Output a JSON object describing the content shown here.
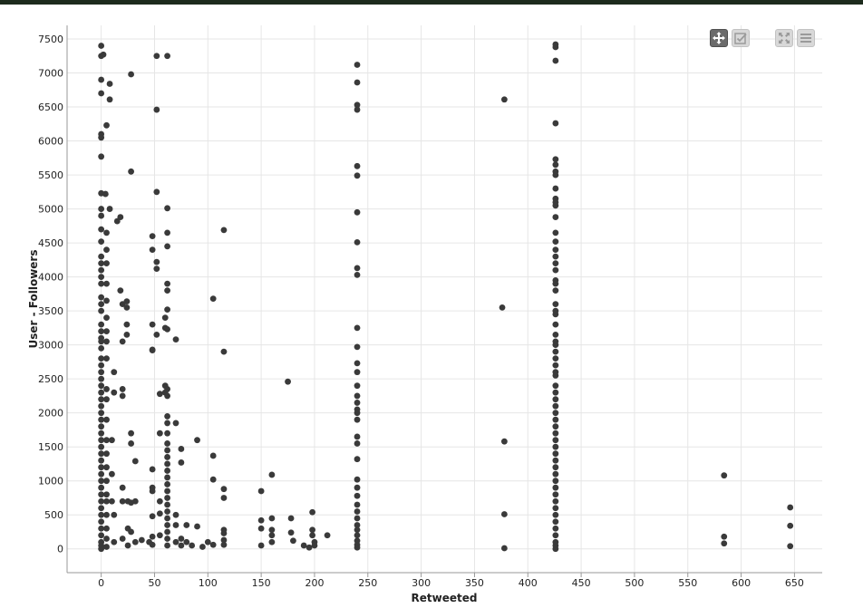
{
  "toolbar": {
    "pan_icon": "move-arrows-icon",
    "select_icon": "checkbox-select-icon",
    "reset_icon": "expand-icon",
    "menu_icon": "hamburger-menu-icon"
  },
  "colors": {
    "points": "#3a3a3a",
    "grid": "#e6e6e6",
    "axis": "#999999",
    "topbar": "#1d2b1d"
  },
  "chart_data": {
    "type": "scatter",
    "xlabel": "Retweeted",
    "ylabel": "User - Followers",
    "xlim": [
      -32,
      676
    ],
    "ylim": [
      -350,
      7700
    ],
    "xticks": [
      0,
      50,
      100,
      150,
      200,
      250,
      300,
      350,
      400,
      450,
      500,
      550,
      600,
      650
    ],
    "yticks": [
      0,
      500,
      1000,
      1500,
      2000,
      2500,
      3000,
      3500,
      4000,
      4500,
      5000,
      5500,
      6000,
      6500,
      7000,
      7500
    ],
    "grid": true,
    "points": [
      [
        0,
        7400
      ],
      [
        0,
        7250
      ],
      [
        2,
        7270
      ],
      [
        0,
        6900
      ],
      [
        0,
        6700
      ],
      [
        0,
        6100
      ],
      [
        0,
        6050
      ],
      [
        0,
        5770
      ],
      [
        0,
        5230
      ],
      [
        0,
        5000
      ],
      [
        0,
        4900
      ],
      [
        0,
        4700
      ],
      [
        0,
        4520
      ],
      [
        0,
        4300
      ],
      [
        0,
        4200
      ],
      [
        0,
        4100
      ],
      [
        0,
        4000
      ],
      [
        0,
        3900
      ],
      [
        0,
        3700
      ],
      [
        0,
        3600
      ],
      [
        0,
        3500
      ],
      [
        0,
        3300
      ],
      [
        0,
        3200
      ],
      [
        0,
        3100
      ],
      [
        0,
        3050
      ],
      [
        0,
        2950
      ],
      [
        0,
        2800
      ],
      [
        0,
        2700
      ],
      [
        0,
        2600
      ],
      [
        0,
        2500
      ],
      [
        0,
        2400
      ],
      [
        0,
        2300
      ],
      [
        0,
        2200
      ],
      [
        0,
        2100
      ],
      [
        0,
        2000
      ],
      [
        0,
        1900
      ],
      [
        0,
        1800
      ],
      [
        0,
        1700
      ],
      [
        0,
        1600
      ],
      [
        0,
        1500
      ],
      [
        0,
        1400
      ],
      [
        0,
        1300
      ],
      [
        0,
        1200
      ],
      [
        0,
        1100
      ],
      [
        0,
        1000
      ],
      [
        0,
        900
      ],
      [
        0,
        800
      ],
      [
        0,
        700
      ],
      [
        0,
        600
      ],
      [
        0,
        500
      ],
      [
        0,
        400
      ],
      [
        0,
        300
      ],
      [
        0,
        200
      ],
      [
        0,
        100
      ],
      [
        0,
        50
      ],
      [
        0,
        0
      ],
      [
        4,
        5220
      ],
      [
        5,
        6230
      ],
      [
        8,
        6840
      ],
      [
        8,
        6610
      ],
      [
        8,
        5000
      ],
      [
        5,
        4650
      ],
      [
        5,
        4400
      ],
      [
        5,
        4200
      ],
      [
        5,
        3900
      ],
      [
        5,
        3650
      ],
      [
        5,
        3400
      ],
      [
        5,
        3200
      ],
      [
        5,
        3050
      ],
      [
        5,
        2800
      ],
      [
        5,
        2350
      ],
      [
        5,
        2200
      ],
      [
        5,
        1900
      ],
      [
        5,
        1600
      ],
      [
        5,
        1400
      ],
      [
        5,
        1200
      ],
      [
        5,
        1000
      ],
      [
        5,
        800
      ],
      [
        5,
        700
      ],
      [
        5,
        500
      ],
      [
        5,
        300
      ],
      [
        5,
        150
      ],
      [
        5,
        30
      ],
      [
        10,
        1600
      ],
      [
        10,
        1100
      ],
      [
        10,
        700
      ],
      [
        12,
        2600
      ],
      [
        12,
        2300
      ],
      [
        12,
        500
      ],
      [
        12,
        100
      ],
      [
        15,
        4820
      ],
      [
        18,
        4880
      ],
      [
        18,
        3800
      ],
      [
        20,
        3600
      ],
      [
        20,
        3050
      ],
      [
        20,
        2350
      ],
      [
        20,
        2250
      ],
      [
        20,
        900
      ],
      [
        20,
        700
      ],
      [
        20,
        150
      ],
      [
        24,
        3640
      ],
      [
        24,
        3550
      ],
      [
        24,
        3300
      ],
      [
        24,
        3150
      ],
      [
        25,
        700
      ],
      [
        25,
        300
      ],
      [
        25,
        50
      ],
      [
        28,
        6980
      ],
      [
        28,
        5550
      ],
      [
        28,
        1700
      ],
      [
        28,
        1550
      ],
      [
        28,
        680
      ],
      [
        28,
        250
      ],
      [
        32,
        1290
      ],
      [
        32,
        700
      ],
      [
        32,
        100
      ],
      [
        38,
        130
      ],
      [
        45,
        100
      ],
      [
        48,
        4600
      ],
      [
        48,
        4400
      ],
      [
        48,
        3300
      ],
      [
        48,
        2930
      ],
      [
        48,
        2920
      ],
      [
        48,
        1170
      ],
      [
        48,
        900
      ],
      [
        48,
        850
      ],
      [
        48,
        480
      ],
      [
        48,
        180
      ],
      [
        48,
        60
      ],
      [
        52,
        7250
      ],
      [
        52,
        6460
      ],
      [
        52,
        5250
      ],
      [
        52,
        4220
      ],
      [
        52,
        4120
      ],
      [
        52,
        3150
      ],
      [
        55,
        2280
      ],
      [
        55,
        1700
      ],
      [
        55,
        700
      ],
      [
        55,
        520
      ],
      [
        55,
        200
      ],
      [
        60,
        3400
      ],
      [
        60,
        3250
      ],
      [
        60,
        2400
      ],
      [
        60,
        2300
      ],
      [
        62,
        7250
      ],
      [
        62,
        5010
      ],
      [
        62,
        4650
      ],
      [
        62,
        4450
      ],
      [
        62,
        3900
      ],
      [
        62,
        3800
      ],
      [
        62,
        3520
      ],
      [
        62,
        3230
      ],
      [
        62,
        2350
      ],
      [
        62,
        2250
      ],
      [
        62,
        1950
      ],
      [
        62,
        1850
      ],
      [
        62,
        1700
      ],
      [
        62,
        1550
      ],
      [
        62,
        1450
      ],
      [
        62,
        1350
      ],
      [
        62,
        1250
      ],
      [
        62,
        1150
      ],
      [
        62,
        1050
      ],
      [
        62,
        950
      ],
      [
        62,
        850
      ],
      [
        62,
        750
      ],
      [
        62,
        650
      ],
      [
        62,
        550
      ],
      [
        62,
        450
      ],
      [
        62,
        350
      ],
      [
        62,
        250
      ],
      [
        62,
        150
      ],
      [
        62,
        50
      ],
      [
        70,
        3080
      ],
      [
        70,
        1850
      ],
      [
        70,
        500
      ],
      [
        70,
        350
      ],
      [
        70,
        100
      ],
      [
        75,
        1470
      ],
      [
        75,
        1270
      ],
      [
        75,
        150
      ],
      [
        75,
        50
      ],
      [
        80,
        350
      ],
      [
        80,
        100
      ],
      [
        85,
        50
      ],
      [
        90,
        1600
      ],
      [
        90,
        330
      ],
      [
        95,
        30
      ],
      [
        100,
        100
      ],
      [
        105,
        3680
      ],
      [
        105,
        1370
      ],
      [
        105,
        1020
      ],
      [
        105,
        60
      ],
      [
        115,
        4690
      ],
      [
        115,
        2900
      ],
      [
        115,
        880
      ],
      [
        115,
        750
      ],
      [
        115,
        280
      ],
      [
        115,
        230
      ],
      [
        115,
        130
      ],
      [
        115,
        60
      ],
      [
        150,
        850
      ],
      [
        150,
        420
      ],
      [
        150,
        300
      ],
      [
        150,
        50
      ],
      [
        160,
        1090
      ],
      [
        160,
        450
      ],
      [
        160,
        280
      ],
      [
        160,
        200
      ],
      [
        160,
        100
      ],
      [
        175,
        2460
      ],
      [
        178,
        450
      ],
      [
        178,
        240
      ],
      [
        180,
        120
      ],
      [
        190,
        50
      ],
      [
        195,
        20
      ],
      [
        198,
        540
      ],
      [
        198,
        280
      ],
      [
        198,
        200
      ],
      [
        200,
        100
      ],
      [
        200,
        50
      ],
      [
        212,
        200
      ],
      [
        240,
        7120
      ],
      [
        240,
        6860
      ],
      [
        240,
        6530
      ],
      [
        240,
        6460
      ],
      [
        240,
        5630
      ],
      [
        240,
        5490
      ],
      [
        240,
        4950
      ],
      [
        240,
        4510
      ],
      [
        240,
        4130
      ],
      [
        240,
        4030
      ],
      [
        240,
        3250
      ],
      [
        240,
        2970
      ],
      [
        240,
        2730
      ],
      [
        240,
        2600
      ],
      [
        240,
        2400
      ],
      [
        240,
        2250
      ],
      [
        240,
        2150
      ],
      [
        240,
        2050
      ],
      [
        240,
        2000
      ],
      [
        240,
        1900
      ],
      [
        240,
        1650
      ],
      [
        240,
        1550
      ],
      [
        240,
        1320
      ],
      [
        240,
        1020
      ],
      [
        240,
        900
      ],
      [
        240,
        780
      ],
      [
        240,
        650
      ],
      [
        240,
        550
      ],
      [
        240,
        450
      ],
      [
        240,
        350
      ],
      [
        240,
        280
      ],
      [
        240,
        200
      ],
      [
        240,
        120
      ],
      [
        240,
        60
      ],
      [
        240,
        20
      ],
      [
        376,
        3550
      ],
      [
        378,
        6610
      ],
      [
        378,
        1580
      ],
      [
        378,
        510
      ],
      [
        378,
        10
      ],
      [
        426,
        7380
      ],
      [
        426,
        7420
      ],
      [
        426,
        7180
      ],
      [
        426,
        6260
      ],
      [
        426,
        5730
      ],
      [
        426,
        5650
      ],
      [
        426,
        5550
      ],
      [
        426,
        5500
      ],
      [
        426,
        5300
      ],
      [
        426,
        5150
      ],
      [
        426,
        5100
      ],
      [
        426,
        5050
      ],
      [
        426,
        4880
      ],
      [
        426,
        4650
      ],
      [
        426,
        4520
      ],
      [
        426,
        4400
      ],
      [
        426,
        4300
      ],
      [
        426,
        4200
      ],
      [
        426,
        4100
      ],
      [
        426,
        3950
      ],
      [
        426,
        3900
      ],
      [
        426,
        3800
      ],
      [
        426,
        3600
      ],
      [
        426,
        3500
      ],
      [
        426,
        3450
      ],
      [
        426,
        3300
      ],
      [
        426,
        3150
      ],
      [
        426,
        3050
      ],
      [
        426,
        3000
      ],
      [
        426,
        2900
      ],
      [
        426,
        2800
      ],
      [
        426,
        2700
      ],
      [
        426,
        2600
      ],
      [
        426,
        2550
      ],
      [
        426,
        2400
      ],
      [
        426,
        2300
      ],
      [
        426,
        2200
      ],
      [
        426,
        2100
      ],
      [
        426,
        2000
      ],
      [
        426,
        1900
      ],
      [
        426,
        1800
      ],
      [
        426,
        1700
      ],
      [
        426,
        1600
      ],
      [
        426,
        1500
      ],
      [
        426,
        1400
      ],
      [
        426,
        1300
      ],
      [
        426,
        1200
      ],
      [
        426,
        1100
      ],
      [
        426,
        1000
      ],
      [
        426,
        900
      ],
      [
        426,
        800
      ],
      [
        426,
        700
      ],
      [
        426,
        600
      ],
      [
        426,
        500
      ],
      [
        426,
        400
      ],
      [
        426,
        300
      ],
      [
        426,
        200
      ],
      [
        426,
        100
      ],
      [
        426,
        50
      ],
      [
        426,
        0
      ],
      [
        584,
        1080
      ],
      [
        584,
        180
      ],
      [
        584,
        80
      ],
      [
        646,
        610
      ],
      [
        646,
        340
      ],
      [
        646,
        40
      ]
    ]
  }
}
